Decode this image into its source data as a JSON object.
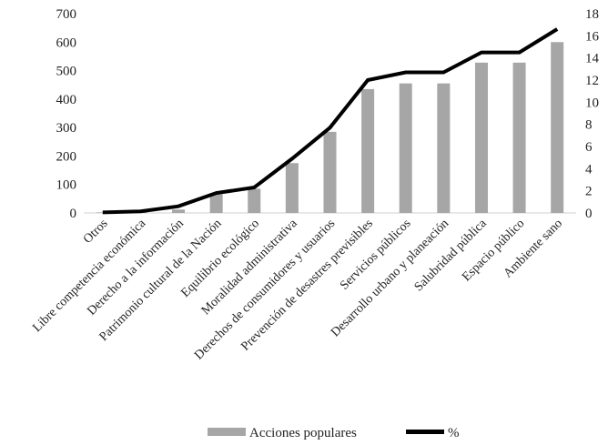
{
  "chart_data": {
    "type": "bar",
    "categories": [
      "Otros",
      "Libre competencia económica",
      "Derecho a la información",
      "Patrimonio cultural de la Nación",
      "Equilibrio ecológico",
      "Moralidad administrativa",
      "Derechos de consumidores y usuarios",
      "Prevención de desastres previsibles",
      "Servicios públicos",
      "Desarrollo urbano y planeación",
      "Salubridad pública",
      "Espacio público",
      "Ambiente sano"
    ],
    "series": [
      {
        "name": "Acciones populares",
        "type": "bar",
        "axis": "left",
        "color": "#a6a6a6",
        "values": [
          2,
          5,
          12,
          65,
          85,
          175,
          285,
          435,
          455,
          455,
          528,
          528,
          600
        ]
      },
      {
        "name": "%",
        "type": "line",
        "axis": "right",
        "color": "#000000",
        "values": [
          0.05,
          0.15,
          0.6,
          1.8,
          2.3,
          4.9,
          7.7,
          12.0,
          12.7,
          12.7,
          14.5,
          14.5,
          16.6
        ]
      }
    ],
    "y_left": {
      "min": 0,
      "max": 700,
      "ticks": [
        0,
        100,
        200,
        300,
        400,
        500,
        600,
        700
      ]
    },
    "y_right": {
      "min": 0,
      "max": 18,
      "ticks": [
        0,
        2,
        4,
        6,
        8,
        10,
        12,
        14,
        16,
        18
      ]
    },
    "grid": false,
    "legend_position": "bottom",
    "title": "",
    "xlabel": "",
    "ylabel": ""
  }
}
